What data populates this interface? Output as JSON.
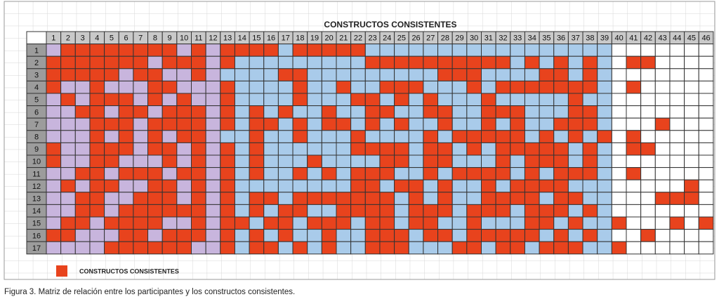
{
  "title": "CONSTRUCTOS CONSISTENTES",
  "columns": [
    1,
    2,
    3,
    4,
    5,
    6,
    7,
    8,
    9,
    10,
    11,
    12,
    13,
    14,
    15,
    16,
    17,
    18,
    19,
    20,
    21,
    22,
    23,
    24,
    25,
    26,
    27,
    28,
    29,
    30,
    31,
    32,
    33,
    34,
    35,
    36,
    37,
    38,
    39,
    40,
    41,
    42,
    43,
    44,
    45,
    46
  ],
  "rows": [
    1,
    2,
    3,
    4,
    5,
    6,
    7,
    8,
    9,
    10,
    11,
    12,
    13,
    14,
    15,
    16,
    17
  ],
  "matrix": [
    [
      0,
      1,
      1,
      1,
      1,
      1,
      1,
      1,
      1,
      0,
      1,
      0,
      1,
      1,
      1,
      1,
      0,
      1,
      1,
      1,
      1,
      1,
      0,
      0,
      0,
      0,
      0,
      0,
      0,
      0,
      0,
      0,
      0,
      0,
      0,
      0,
      0,
      0,
      0,
      0,
      0,
      0,
      0,
      0,
      0,
      0
    ],
    [
      1,
      1,
      1,
      1,
      1,
      1,
      1,
      0,
      1,
      1,
      1,
      0,
      1,
      0,
      0,
      0,
      0,
      0,
      0,
      0,
      0,
      0,
      1,
      1,
      1,
      1,
      1,
      1,
      1,
      1,
      1,
      1,
      0,
      1,
      0,
      1,
      0,
      1,
      0,
      0,
      1,
      1,
      0,
      0,
      0,
      0
    ],
    [
      1,
      1,
      1,
      1,
      1,
      0,
      1,
      1,
      0,
      0,
      1,
      0,
      0,
      0,
      0,
      0,
      1,
      1,
      0,
      0,
      0,
      0,
      0,
      0,
      0,
      0,
      0,
      1,
      1,
      1,
      0,
      0,
      0,
      0,
      1,
      1,
      0,
      1,
      0,
      0,
      0,
      0,
      0,
      0,
      0,
      0
    ],
    [
      1,
      0,
      0,
      1,
      0,
      0,
      0,
      1,
      1,
      0,
      0,
      0,
      1,
      0,
      0,
      0,
      0,
      1,
      0,
      0,
      1,
      0,
      0,
      1,
      1,
      1,
      0,
      0,
      0,
      1,
      0,
      1,
      1,
      1,
      1,
      1,
      1,
      1,
      0,
      0,
      1,
      0,
      0,
      0,
      0,
      0
    ],
    [
      0,
      1,
      0,
      1,
      1,
      1,
      0,
      1,
      0,
      1,
      0,
      0,
      1,
      0,
      0,
      0,
      0,
      1,
      0,
      0,
      0,
      1,
      1,
      0,
      1,
      0,
      1,
      0,
      0,
      0,
      1,
      0,
      0,
      0,
      0,
      0,
      1,
      0,
      0,
      0,
      0,
      0,
      0,
      0,
      0,
      0
    ],
    [
      0,
      0,
      1,
      1,
      0,
      1,
      1,
      0,
      1,
      1,
      1,
      0,
      1,
      0,
      1,
      0,
      1,
      0,
      0,
      1,
      0,
      0,
      1,
      1,
      0,
      0,
      1,
      1,
      0,
      0,
      1,
      1,
      1,
      0,
      0,
      0,
      1,
      1,
      0,
      0,
      0,
      0,
      0,
      0,
      0,
      0
    ],
    [
      0,
      0,
      0,
      1,
      1,
      1,
      0,
      1,
      1,
      1,
      1,
      0,
      1,
      0,
      1,
      1,
      0,
      1,
      0,
      1,
      1,
      0,
      1,
      0,
      1,
      0,
      0,
      1,
      0,
      0,
      1,
      0,
      1,
      0,
      0,
      1,
      1,
      1,
      0,
      0,
      0,
      0,
      1,
      0,
      0,
      0
    ],
    [
      0,
      0,
      0,
      1,
      0,
      1,
      0,
      1,
      0,
      1,
      1,
      0,
      0,
      0,
      1,
      0,
      0,
      1,
      0,
      0,
      0,
      1,
      0,
      0,
      0,
      0,
      1,
      0,
      1,
      1,
      1,
      1,
      1,
      0,
      1,
      0,
      1,
      0,
      1,
      0,
      1,
      0,
      0,
      0,
      0,
      0
    ],
    [
      1,
      0,
      0,
      1,
      1,
      1,
      0,
      1,
      1,
      0,
      1,
      0,
      1,
      0,
      1,
      0,
      0,
      0,
      0,
      0,
      0,
      1,
      1,
      1,
      1,
      0,
      1,
      1,
      0,
      1,
      0,
      1,
      1,
      1,
      1,
      1,
      0,
      1,
      0,
      0,
      1,
      1,
      0,
      0,
      0,
      0
    ],
    [
      1,
      0,
      0,
      1,
      1,
      0,
      0,
      0,
      1,
      0,
      1,
      0,
      1,
      0,
      1,
      0,
      0,
      0,
      1,
      0,
      0,
      0,
      0,
      1,
      1,
      0,
      1,
      1,
      0,
      0,
      0,
      1,
      0,
      1,
      1,
      1,
      0,
      1,
      0,
      0,
      0,
      0,
      0,
      0,
      0,
      0
    ],
    [
      0,
      0,
      1,
      1,
      0,
      1,
      1,
      1,
      0,
      1,
      1,
      0,
      1,
      0,
      1,
      0,
      0,
      1,
      0,
      1,
      0,
      1,
      1,
      1,
      0,
      0,
      1,
      0,
      1,
      1,
      1,
      1,
      0,
      1,
      0,
      1,
      1,
      1,
      0,
      0,
      1,
      0,
      0,
      0,
      0,
      0
    ],
    [
      0,
      1,
      0,
      1,
      1,
      0,
      0,
      1,
      1,
      0,
      1,
      0,
      1,
      0,
      0,
      0,
      0,
      0,
      0,
      0,
      0,
      1,
      1,
      0,
      1,
      1,
      0,
      1,
      0,
      0,
      1,
      0,
      1,
      1,
      1,
      1,
      0,
      0,
      0,
      0,
      0,
      0,
      0,
      0,
      1,
      0
    ],
    [
      0,
      0,
      1,
      1,
      0,
      0,
      1,
      1,
      1,
      0,
      1,
      0,
      1,
      0,
      1,
      1,
      0,
      1,
      1,
      1,
      1,
      1,
      1,
      1,
      0,
      1,
      0,
      1,
      0,
      0,
      1,
      1,
      1,
      1,
      0,
      1,
      1,
      0,
      0,
      0,
      0,
      0,
      1,
      1,
      1,
      0
    ],
    [
      0,
      0,
      1,
      1,
      0,
      1,
      1,
      1,
      1,
      1,
      1,
      0,
      1,
      0,
      1,
      0,
      1,
      1,
      0,
      0,
      1,
      1,
      1,
      1,
      0,
      1,
      1,
      1,
      0,
      1,
      1,
      1,
      0,
      1,
      1,
      1,
      0,
      1,
      0,
      0,
      0,
      0,
      0,
      0,
      0,
      0
    ],
    [
      0,
      1,
      1,
      0,
      1,
      1,
      1,
      1,
      0,
      0,
      1,
      0,
      1,
      1,
      0,
      1,
      1,
      0,
      1,
      1,
      1,
      0,
      1,
      1,
      0,
      1,
      1,
      0,
      0,
      1,
      0,
      0,
      0,
      1,
      1,
      0,
      1,
      0,
      0,
      1,
      0,
      0,
      0,
      1,
      0,
      1
    ],
    [
      1,
      1,
      0,
      0,
      0,
      1,
      1,
      0,
      1,
      1,
      1,
      0,
      1,
      0,
      1,
      0,
      1,
      0,
      0,
      1,
      0,
      0,
      1,
      1,
      1,
      0,
      1,
      1,
      0,
      1,
      1,
      1,
      1,
      1,
      0,
      1,
      0,
      1,
      0,
      0,
      0,
      1,
      0,
      0,
      0,
      0
    ],
    [
      0,
      0,
      0,
      0,
      1,
      1,
      1,
      1,
      1,
      1,
      0,
      0,
      1,
      0,
      1,
      1,
      0,
      1,
      0,
      1,
      0,
      0,
      1,
      1,
      1,
      0,
      0,
      0,
      1,
      1,
      0,
      1,
      1,
      0,
      1,
      1,
      1,
      0,
      0,
      1,
      0,
      0,
      0,
      0,
      0,
      0
    ]
  ],
  "legend": "CONSTRUCTOS CONSISTENTES",
  "caption": "Figura 3. Matriz de relación entre los participantes y los constructos consistentes."
}
